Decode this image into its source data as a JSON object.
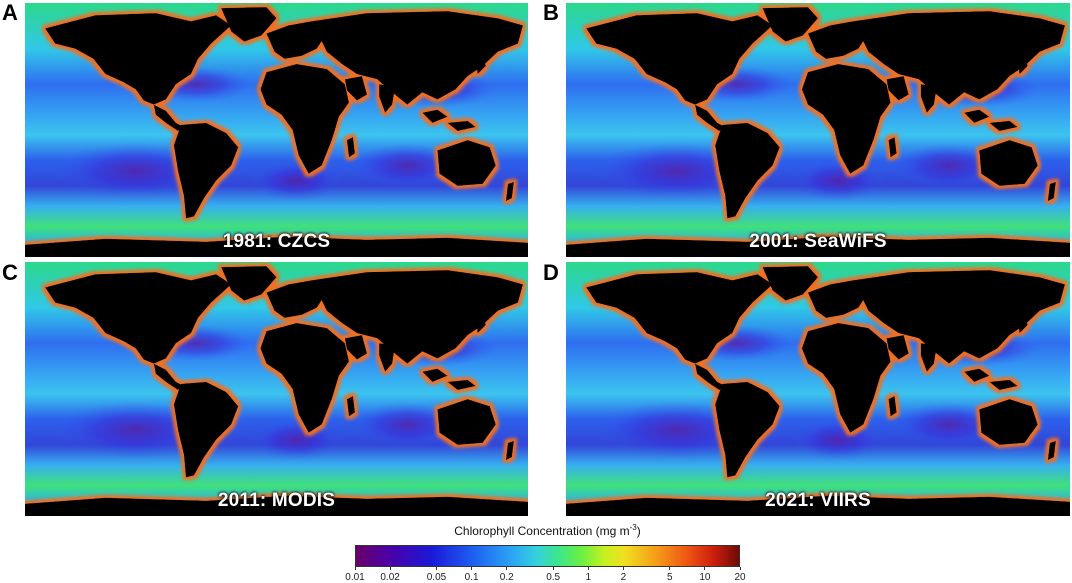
{
  "panels": [
    {
      "letter": "A",
      "caption": "1981: CZCS"
    },
    {
      "letter": "B",
      "caption": "2001: SeaWiFS"
    },
    {
      "letter": "C",
      "caption": "2011: MODIS"
    },
    {
      "letter": "D",
      "caption": "2021: VIIRS"
    }
  ],
  "colorbar": {
    "title": "Chlorophyll Concentration (mg m",
    "title_sup": "-3",
    "title_end": ")",
    "ticks": [
      "0.01",
      "0.02",
      "0.05",
      "0.1",
      "0.2",
      "0.5",
      "1",
      "2",
      "5",
      "10",
      "20"
    ],
    "scale": "log"
  },
  "colors": {
    "ocean_low": "#2a3ad8",
    "ocean_mid": "#2aa0f5",
    "coast_high": "#f05a14",
    "land": "#000000"
  }
}
